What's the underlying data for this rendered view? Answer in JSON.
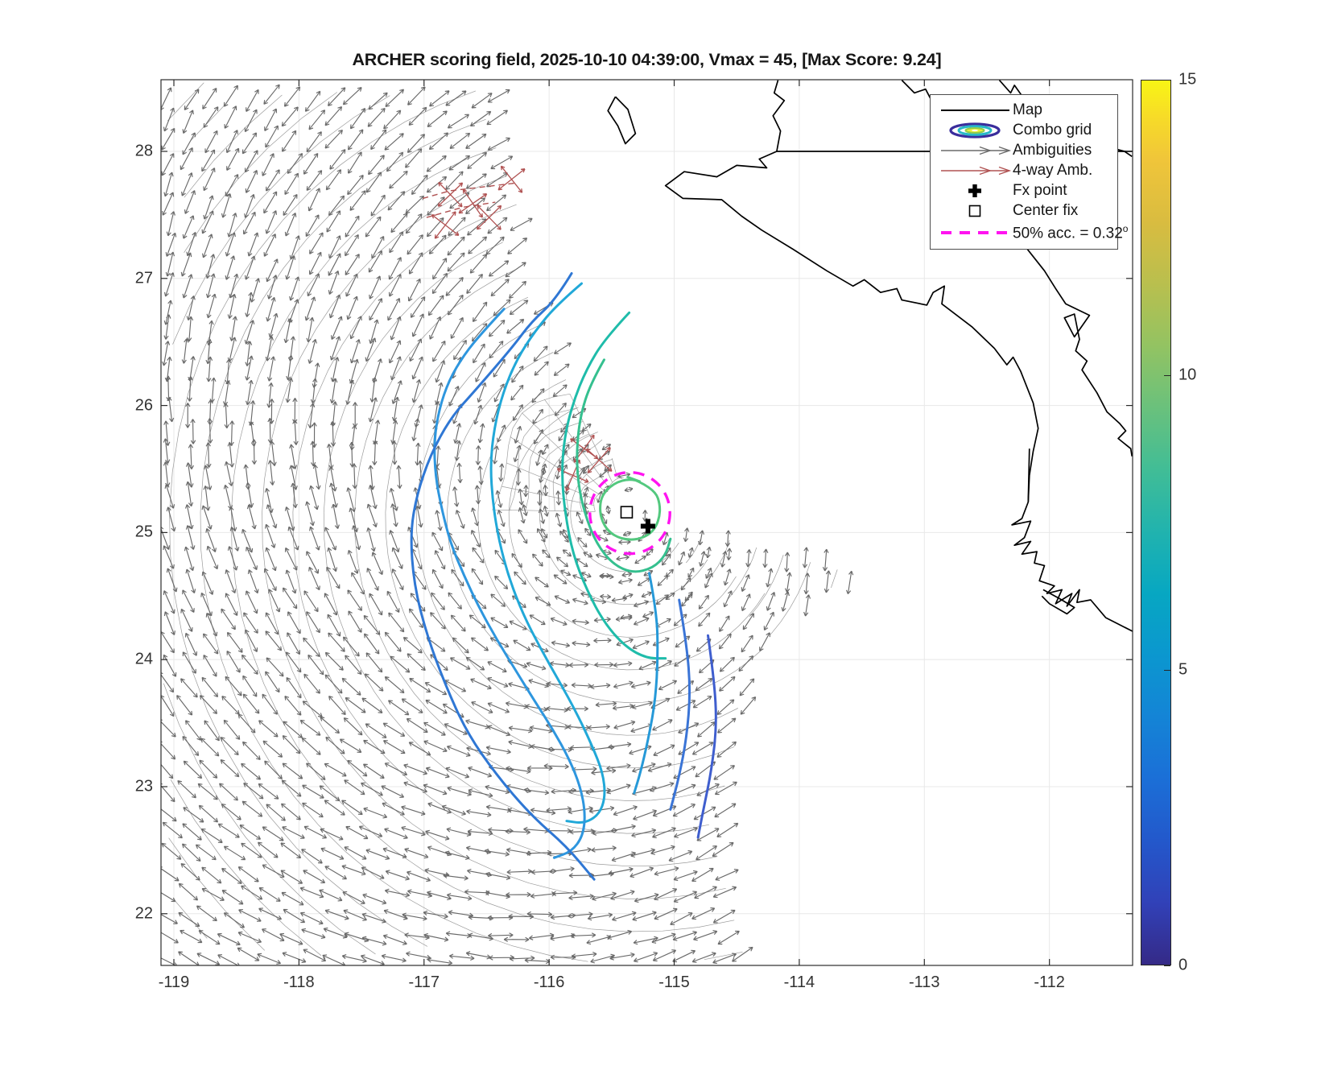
{
  "title": "ARCHER scoring field, 2025-10-10 04:39:00, Vmax = 45, [Max Score: 9.24]",
  "legend": {
    "items": [
      {
        "label": "Map"
      },
      {
        "label": "Combo grid"
      },
      {
        "label": "Ambiguities"
      },
      {
        "label": "4-way Amb."
      },
      {
        "label": "Fx point"
      },
      {
        "label": "Center fix"
      },
      {
        "label": "50% acc. = 0.32",
        "sup": "o"
      }
    ]
  },
  "colorbar": {
    "min": 0,
    "max": 15,
    "ticks": [
      0,
      5,
      10,
      15
    ]
  },
  "chart_data": {
    "type": "quiver-contour-map",
    "title": "ARCHER scoring field, 2025-10-10 04:39:00, Vmax = 45, [Max Score: 9.24]",
    "x_ticks": [
      -119,
      -118,
      -117,
      -116,
      -115,
      -114,
      -113,
      -112
    ],
    "y_ticks": [
      22,
      23,
      24,
      25,
      26,
      27,
      28
    ],
    "xlim": [
      -119.103,
      -111.335
    ],
    "ylim": [
      21.593,
      28.564
    ],
    "grid": true,
    "colorbar": {
      "min": 0,
      "max": 15,
      "ticks": [
        0,
        5,
        10,
        15
      ]
    },
    "storm": {
      "fix_time": "2025-10-10 04:39:00",
      "vmax": 45,
      "max_score": 9.24,
      "fx_point": {
        "lon": -115.21,
        "lat": 25.05
      },
      "center_fix": {
        "lon": -115.38,
        "lat": 25.16
      },
      "accuracy_radius_deg": 0.32,
      "accuracy_color": "#ff14f0"
    },
    "vector_field": {
      "center": {
        "lon": -115.38,
        "lat": 25.16
      },
      "grid_step_deg": 0.165,
      "arrow_color": "#6a6a6a",
      "east_boundary": [
        [
          28.6,
          -116.3
        ],
        [
          27.3,
          -116.22
        ],
        [
          26.8,
          -116.02
        ],
        [
          26.2,
          -115.82
        ],
        [
          25.6,
          -115.48
        ],
        [
          25.25,
          -115.28
        ],
        [
          25.0,
          -115.12
        ],
        [
          24.88,
          -113.72
        ],
        [
          24.6,
          -113.52
        ],
        [
          24.35,
          -114.05
        ],
        [
          24.0,
          -114.33
        ],
        [
          23.3,
          -114.48
        ],
        [
          22.6,
          -114.5
        ],
        [
          21.55,
          -114.4
        ]
      ]
    },
    "contours": [
      {
        "name": "score-9",
        "color": "#53c87e",
        "closed": true,
        "points": [
          [
            -115.38,
            25.44
          ],
          [
            -115.16,
            25.36
          ],
          [
            -115.1,
            25.18
          ],
          [
            -115.16,
            25.0
          ],
          [
            -115.33,
            24.93
          ],
          [
            -115.51,
            24.98
          ],
          [
            -115.6,
            25.13
          ],
          [
            -115.58,
            25.32
          ]
        ]
      },
      {
        "name": "score-8",
        "color": "#35c08f",
        "closed": false,
        "points": [
          [
            -115.56,
            26.36
          ],
          [
            -115.67,
            26.17
          ],
          [
            -115.75,
            25.92
          ],
          [
            -115.78,
            25.66
          ],
          [
            -115.77,
            25.39
          ],
          [
            -115.71,
            25.13
          ],
          [
            -115.62,
            24.91
          ],
          [
            -115.49,
            24.75
          ],
          [
            -115.33,
            24.68
          ],
          [
            -115.17,
            24.72
          ],
          [
            -115.07,
            24.82
          ],
          [
            -115.03,
            24.95
          ]
        ]
      },
      {
        "name": "score-7",
        "color": "#1fbcaa",
        "closed": false,
        "points": [
          [
            -115.36,
            26.73
          ],
          [
            -115.55,
            26.53
          ],
          [
            -115.7,
            26.29
          ],
          [
            -115.81,
            26.02
          ],
          [
            -115.88,
            25.74
          ],
          [
            -115.9,
            25.44
          ],
          [
            -115.87,
            25.14
          ],
          [
            -115.81,
            24.83
          ],
          [
            -115.7,
            24.55
          ],
          [
            -115.56,
            24.29
          ],
          [
            -115.39,
            24.1
          ],
          [
            -115.22,
            24.01
          ],
          [
            -115.07,
            24.01
          ]
        ]
      },
      {
        "name": "score-6",
        "color": "#21a8d8",
        "closed": false,
        "points": [
          [
            -115.74,
            26.96
          ],
          [
            -115.93,
            26.8
          ],
          [
            -116.11,
            26.59
          ],
          [
            -116.26,
            26.36
          ],
          [
            -116.37,
            26.1
          ],
          [
            -116.44,
            25.82
          ],
          [
            -116.47,
            25.53
          ],
          [
            -116.45,
            25.23
          ],
          [
            -116.4,
            24.93
          ],
          [
            -116.32,
            24.64
          ],
          [
            -116.21,
            24.36
          ],
          [
            -116.07,
            24.09
          ],
          [
            -115.92,
            23.83
          ],
          [
            -115.78,
            23.58
          ],
          [
            -115.66,
            23.33
          ],
          [
            -115.57,
            23.11
          ],
          [
            -115.55,
            22.92
          ],
          [
            -115.6,
            22.78
          ],
          [
            -115.72,
            22.71
          ],
          [
            -115.86,
            22.73
          ]
        ]
      },
      {
        "name": "score-5",
        "color": "#2e96de",
        "closed": false,
        "points": [
          [
            -116.36,
            26.76
          ],
          [
            -116.53,
            26.58
          ],
          [
            -116.68,
            26.4
          ],
          [
            -116.8,
            26.2
          ],
          [
            -116.88,
            25.97
          ],
          [
            -116.92,
            25.72
          ],
          [
            -116.91,
            25.45
          ],
          [
            -116.86,
            25.19
          ],
          [
            -116.79,
            24.92
          ],
          [
            -116.68,
            24.66
          ],
          [
            -116.56,
            24.41
          ],
          [
            -116.42,
            24.16
          ],
          [
            -116.27,
            23.92
          ],
          [
            -116.12,
            23.68
          ],
          [
            -115.97,
            23.45
          ],
          [
            -115.84,
            23.22
          ],
          [
            -115.75,
            23.0
          ],
          [
            -115.71,
            22.79
          ],
          [
            -115.73,
            22.61
          ],
          [
            -115.82,
            22.49
          ],
          [
            -115.96,
            22.44
          ]
        ]
      },
      {
        "name": "score-4",
        "color": "#2f77d4",
        "closed": false,
        "points": [
          [
            -115.82,
            27.04
          ],
          [
            -115.95,
            26.83
          ],
          [
            -116.14,
            26.66
          ],
          [
            -116.3,
            26.45
          ],
          [
            -116.59,
            26.12
          ],
          [
            -116.79,
            25.9
          ],
          [
            -116.95,
            25.61
          ],
          [
            -117.06,
            25.29
          ],
          [
            -117.11,
            24.99
          ],
          [
            -117.08,
            24.59
          ],
          [
            -116.98,
            24.2
          ],
          [
            -116.83,
            23.8
          ],
          [
            -116.66,
            23.43
          ],
          [
            -116.42,
            23.09
          ],
          [
            -116.14,
            22.77
          ],
          [
            -115.86,
            22.53
          ],
          [
            -115.64,
            22.27
          ]
        ]
      },
      {
        "name": "arc-east-6",
        "color": "#2699d8",
        "closed": false,
        "points": [
          [
            -115.2,
            24.68
          ],
          [
            -115.14,
            24.38
          ],
          [
            -115.13,
            24.03
          ],
          [
            -115.15,
            23.68
          ],
          [
            -115.21,
            23.36
          ],
          [
            -115.27,
            23.11
          ],
          [
            -115.32,
            22.95
          ]
        ]
      },
      {
        "name": "arc-east-5",
        "color": "#3a74d6",
        "closed": false,
        "points": [
          [
            -114.96,
            24.47
          ],
          [
            -114.9,
            24.12
          ],
          [
            -114.87,
            23.75
          ],
          [
            -114.9,
            23.39
          ],
          [
            -114.96,
            23.08
          ],
          [
            -115.03,
            22.82
          ]
        ]
      },
      {
        "name": "arc-east-4",
        "color": "#3f5ece",
        "closed": false,
        "points": [
          [
            -114.73,
            24.19
          ],
          [
            -114.68,
            23.84
          ],
          [
            -114.66,
            23.49
          ],
          [
            -114.7,
            23.14
          ],
          [
            -114.76,
            22.85
          ],
          [
            -114.81,
            22.6
          ]
        ]
      }
    ],
    "red_ambiguities": {
      "color": "#b05252",
      "points": [
        [
          -116.83,
          27.42
        ],
        [
          -116.61,
          27.59
        ],
        [
          -116.48,
          27.48
        ],
        [
          -116.3,
          27.78
        ],
        [
          -116.79,
          27.66
        ],
        [
          -115.72,
          25.66
        ],
        [
          -115.6,
          25.57
        ],
        [
          -115.81,
          25.45
        ]
      ],
      "dashed_curves": [
        [
          [
            -117.01,
            27.63
          ],
          [
            -116.79,
            27.69
          ],
          [
            -116.53,
            27.72
          ],
          [
            -116.27,
            27.75
          ]
        ],
        [
          [
            -116.98,
            27.48
          ],
          [
            -116.69,
            27.56
          ],
          [
            -116.43,
            27.6
          ]
        ]
      ]
    },
    "map_paths": {
      "color": "#000000",
      "baja_pacific": [
        [
          -114.17,
          28.56
        ],
        [
          -114.2,
          28.46
        ],
        [
          -114.12,
          28.4
        ],
        [
          -114.21,
          28.28
        ],
        [
          -114.15,
          28.16
        ],
        [
          -114.18,
          28.0
        ],
        [
          -114.32,
          27.94
        ],
        [
          -114.26,
          27.87
        ],
        [
          -114.5,
          27.89
        ],
        [
          -114.66,
          27.8
        ],
        [
          -114.92,
          27.84
        ],
        [
          -115.07,
          27.73
        ],
        [
          -114.93,
          27.63
        ],
        [
          -114.62,
          27.62
        ],
        [
          -114.46,
          27.49
        ],
        [
          -114.3,
          27.38
        ],
        [
          -114.05,
          27.23
        ],
        [
          -113.78,
          27.06
        ],
        [
          -113.57,
          26.94
        ],
        [
          -113.48,
          26.99
        ],
        [
          -113.35,
          26.89
        ],
        [
          -113.22,
          26.92
        ],
        [
          -113.18,
          26.83
        ],
        [
          -112.98,
          26.79
        ],
        [
          -112.93,
          26.89
        ],
        [
          -112.84,
          26.94
        ],
        [
          -112.86,
          26.8
        ],
        [
          -112.62,
          26.62
        ],
        [
          -112.44,
          26.45
        ],
        [
          -112.34,
          26.32
        ],
        [
          -112.29,
          26.38
        ],
        [
          -112.23,
          26.27
        ],
        [
          -112.13,
          26.02
        ],
        [
          -112.09,
          25.82
        ],
        [
          -112.13,
          25.64
        ],
        [
          -112.16,
          25.45
        ],
        [
          -112.17,
          25.24
        ],
        [
          -112.22,
          25.11
        ],
        [
          -112.3,
          25.06
        ],
        [
          -112.15,
          25.09
        ],
        [
          -112.2,
          24.96
        ],
        [
          -112.28,
          24.9
        ],
        [
          -112.15,
          24.93
        ],
        [
          -112.22,
          24.83
        ],
        [
          -112.1,
          24.85
        ],
        [
          -112.12,
          24.76
        ],
        [
          -112.04,
          24.74
        ],
        [
          -112.08,
          24.62
        ],
        [
          -111.96,
          24.58
        ],
        [
          -112.02,
          24.52
        ],
        [
          -111.9,
          24.55
        ],
        [
          -111.95,
          24.44
        ],
        [
          -111.82,
          24.52
        ],
        [
          -111.86,
          24.42
        ],
        [
          -111.76,
          24.55
        ],
        [
          -111.78,
          24.45
        ],
        [
          -111.67,
          24.47
        ],
        [
          -111.55,
          24.33
        ],
        [
          -111.45,
          24.28
        ],
        [
          -111.33,
          24.22
        ]
      ],
      "border_28n": [
        [
          -114.18,
          28.0
        ],
        [
          -111.335,
          28.0
        ]
      ],
      "inlet": [
        [
          -112.16,
          25.66
        ],
        [
          -112.17,
          25.24
        ]
      ],
      "barrier_spit": [
        [
          -112.05,
          24.55
        ],
        [
          -111.92,
          24.48
        ],
        [
          -111.8,
          24.41
        ],
        [
          -111.86,
          24.36
        ],
        [
          -112.0,
          24.44
        ],
        [
          -112.06,
          24.5
        ]
      ],
      "gulf_coast": [
        [
          -113.18,
          28.56
        ],
        [
          -113.08,
          28.46
        ],
        [
          -112.99,
          28.49
        ],
        [
          -112.9,
          28.32
        ],
        [
          -112.76,
          28.16
        ],
        [
          -112.7,
          27.99
        ],
        [
          -112.56,
          27.86
        ],
        [
          -112.45,
          27.7
        ],
        [
          -112.34,
          27.52
        ],
        [
          -112.28,
          27.36
        ],
        [
          -112.16,
          27.21
        ],
        [
          -112.04,
          27.06
        ],
        [
          -111.95,
          26.92
        ],
        [
          -111.87,
          26.8
        ],
        [
          -111.68,
          26.71
        ],
        [
          -111.8,
          26.54
        ],
        [
          -111.88,
          26.69
        ],
        [
          -111.8,
          26.72
        ],
        [
          -111.76,
          26.52
        ],
        [
          -111.79,
          26.43
        ],
        [
          -111.7,
          26.35
        ],
        [
          -111.74,
          26.28
        ],
        [
          -111.62,
          26.1
        ],
        [
          -111.54,
          25.95
        ],
        [
          -111.44,
          25.86
        ],
        [
          -111.39,
          25.8
        ],
        [
          -111.45,
          25.74
        ],
        [
          -111.35,
          25.66
        ],
        [
          -111.34,
          25.6
        ]
      ],
      "sonora_coast": [
        [
          -112.4,
          28.56
        ],
        [
          -112.31,
          28.46
        ],
        [
          -112.28,
          28.52
        ],
        [
          -112.15,
          28.34
        ],
        [
          -112.06,
          28.38
        ],
        [
          -111.99,
          28.22
        ],
        [
          -111.88,
          28.27
        ],
        [
          -111.8,
          28.12
        ],
        [
          -111.66,
          28.15
        ],
        [
          -111.55,
          28.04
        ],
        [
          -111.4,
          28.0
        ],
        [
          -111.34,
          27.96
        ]
      ],
      "island": [
        [
          -115.47,
          28.43
        ],
        [
          -115.37,
          28.33
        ],
        [
          -115.31,
          28.14
        ],
        [
          -115.39,
          28.06
        ],
        [
          -115.45,
          28.2
        ],
        [
          -115.53,
          28.32
        ],
        [
          -115.47,
          28.43
        ]
      ]
    }
  }
}
